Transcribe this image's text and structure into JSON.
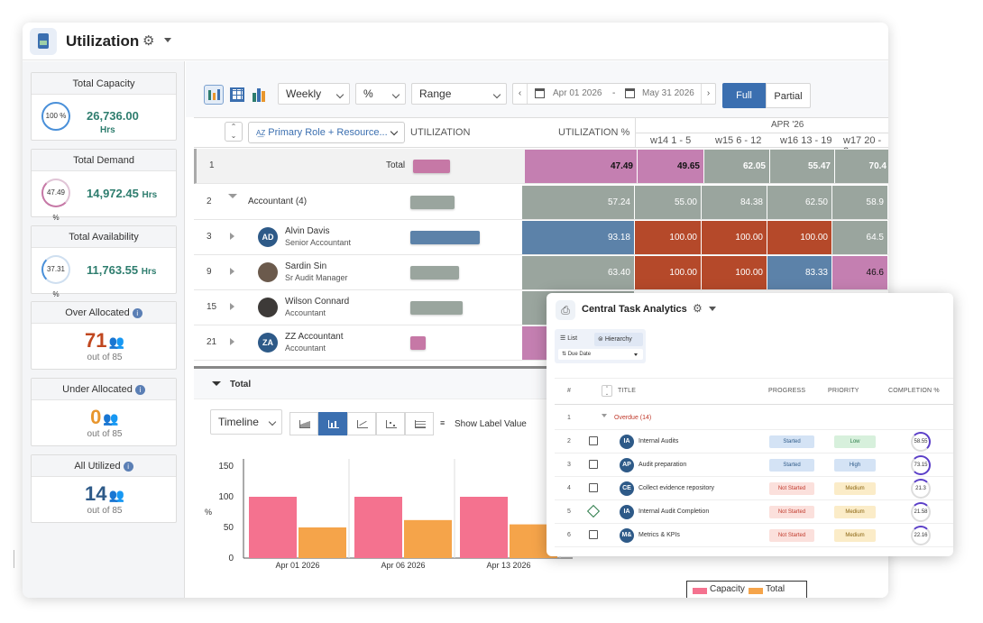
{
  "header": {
    "title": "Utilization"
  },
  "sidebar": {
    "total_capacity": {
      "label": "Total Capacity",
      "percent": "100 %",
      "value": "26,736.00",
      "unit": "Hrs",
      "ring_color": "#4a90d9"
    },
    "total_demand": {
      "label": "Total Demand",
      "percent": "47.49 %",
      "value": "14,972.45",
      "unit": "Hrs",
      "ring_color": "#c678a6"
    },
    "total_availability": {
      "label": "Total Availability",
      "percent": "37.31 %",
      "value": "11,763.55",
      "unit": "Hrs",
      "ring_color": "#4a90d9"
    },
    "over_allocated": {
      "label": "Over Allocated",
      "count": "71",
      "out_of": "out of 85",
      "color": "#c0471f"
    },
    "under_allocated": {
      "label": "Under Allocated",
      "count": "0",
      "out_of": "out of 85",
      "color": "#e8962e"
    },
    "all_utilized": {
      "label": "All Utilized",
      "count": "14",
      "out_of": "out of 85",
      "color": "#2e5a88"
    }
  },
  "toolbar": {
    "period": "Weekly",
    "unit": "%",
    "range": "Range",
    "date_from": "Apr 01 2026",
    "date_sep": "-",
    "date_to": "May 31 2026",
    "full": "Full",
    "partial": "Partial"
  },
  "grid": {
    "group_by": "Primary Role + Resource...",
    "col_utilization": "UTILIZATION",
    "col_utilization_pct": "UTILIZATION %",
    "month": "APR '26",
    "weeks": [
      "w14 1 - 5",
      "w15 6 - 12",
      "w16 13 - 19",
      "w17 20 - 2"
    ],
    "total_row": {
      "num": "1",
      "label": "Total",
      "pct": "47.49",
      "w": [
        "49.65",
        "62.05",
        "55.47",
        "70.4"
      ]
    },
    "group_row": {
      "num": "2",
      "label": "Accountant (4)",
      "pct": "57.24",
      "w": [
        "55.00",
        "84.38",
        "62.50",
        "58.9"
      ]
    },
    "people": [
      {
        "num": "3",
        "initials": "AD",
        "name": "Alvin Davis",
        "role": "Senior Accountant",
        "pct": "93.18",
        "w": [
          "100.00",
          "100.00",
          "100.00",
          "64.5"
        ]
      },
      {
        "num": "9",
        "initials": "",
        "name": "Sardin Sin",
        "role": "Sr Audit Manager",
        "pct": "63.40",
        "w": [
          "100.00",
          "100.00",
          "83.33",
          "46.6"
        ]
      },
      {
        "num": "15",
        "initials": "",
        "name": "Wilson Connard",
        "role": "Accountant",
        "pct": "",
        "w": [
          "",
          "",
          "",
          ""
        ]
      },
      {
        "num": "21",
        "initials": "ZA",
        "name": "ZZ Accountant",
        "role": "Accountant",
        "pct": "",
        "w": [
          "",
          "",
          "",
          ""
        ]
      }
    ]
  },
  "bottom": {
    "section": "Total",
    "chart_type": "Timeline",
    "show_label": "Show Label Value"
  },
  "chart_data": {
    "type": "bar",
    "categories": [
      "Apr 01 2026",
      "Apr 06 2026",
      "Apr 13 2026"
    ],
    "series": [
      {
        "name": "Capacity",
        "values": [
          100,
          100,
          100
        ],
        "color": "#f4728f"
      },
      {
        "name": "Total",
        "values": [
          50,
          62,
          55
        ],
        "color": "#f5a44a"
      }
    ],
    "ylabel": "%",
    "yticks": [
      "0",
      "50",
      "100",
      "150"
    ],
    "ylim": [
      0,
      150
    ],
    "legend_position": "bottom-right"
  },
  "task_panel": {
    "title": "Central Task Analytics",
    "tab_list": "List",
    "tab_hierarchy": "Hierarchy",
    "sort": "Due Date",
    "cols": {
      "num": "#",
      "title": "TITLE",
      "progress": "PROGRESS",
      "priority": "PRIORITY",
      "completion": "COMPLETION %"
    },
    "group": {
      "num": "1",
      "label": "Overdue (14)"
    },
    "rows": [
      {
        "num": "2",
        "initials": "IA",
        "title": "Internal Audits",
        "progress": "Started",
        "priority": "Low",
        "completion": "58.55"
      },
      {
        "num": "3",
        "initials": "AP",
        "title": "Audit preparation",
        "progress": "Started",
        "priority": "High",
        "completion": "73.15"
      },
      {
        "num": "4",
        "initials": "CE",
        "title": "Collect evidence repository",
        "progress": "Not Started",
        "priority": "Medium",
        "completion": "21.3"
      },
      {
        "num": "5",
        "initials": "IA",
        "title": "Internal Audit Completion",
        "progress": "Not Started",
        "priority": "Medium",
        "completion": "21.58"
      },
      {
        "num": "6",
        "initials": "M&",
        "title": "Metrics & KPIs",
        "progress": "Not Started",
        "priority": "Medium",
        "completion": "22.16"
      }
    ]
  }
}
